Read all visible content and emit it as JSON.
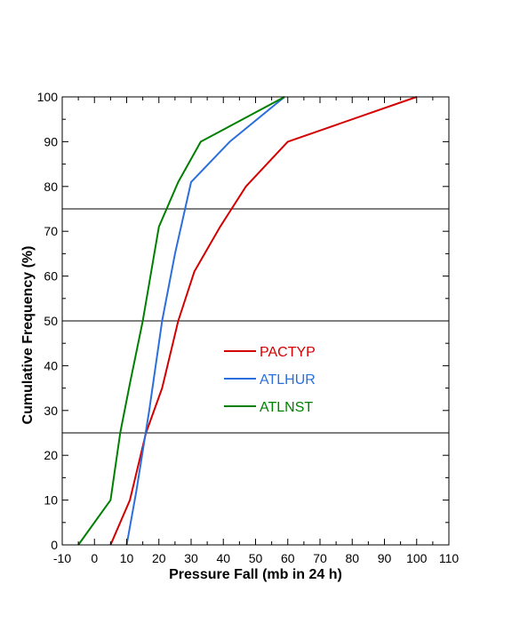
{
  "chart_data": {
    "type": "line",
    "title": "",
    "xlabel": "Pressure Fall (mb in 24 h)",
    "ylabel": "Cumulative Frequency (%)",
    "xlim": [
      -10,
      110
    ],
    "ylim": [
      0,
      100
    ],
    "xticks": [
      -10,
      0,
      10,
      20,
      30,
      40,
      50,
      60,
      70,
      80,
      90,
      100,
      110
    ],
    "yticks": [
      0,
      10,
      20,
      30,
      40,
      50,
      60,
      70,
      80,
      90,
      100
    ],
    "reference_lines_y": [
      25,
      50,
      75
    ],
    "grid": false,
    "legend_position": "center",
    "series": [
      {
        "name": "PACTYP",
        "color": "#d40000",
        "x": [
          5,
          11,
          16,
          21,
          26,
          31,
          39,
          47,
          60,
          100
        ],
        "y": [
          0,
          10,
          25,
          35,
          50,
          61,
          71,
          80,
          90,
          100
        ]
      },
      {
        "name": "ATLHUR",
        "color": "#2a6fdb",
        "x": [
          10,
          13,
          17,
          21,
          25,
          30,
          42,
          59
        ],
        "y": [
          0,
          12,
          30,
          50,
          65,
          81,
          90,
          100
        ]
      },
      {
        "name": "ATLNST",
        "color": "#008000",
        "x": [
          -5,
          5,
          8,
          11,
          15,
          20,
          26,
          33,
          59
        ],
        "y": [
          0,
          10,
          25,
          36,
          50,
          71,
          81,
          90,
          100
        ]
      }
    ]
  }
}
